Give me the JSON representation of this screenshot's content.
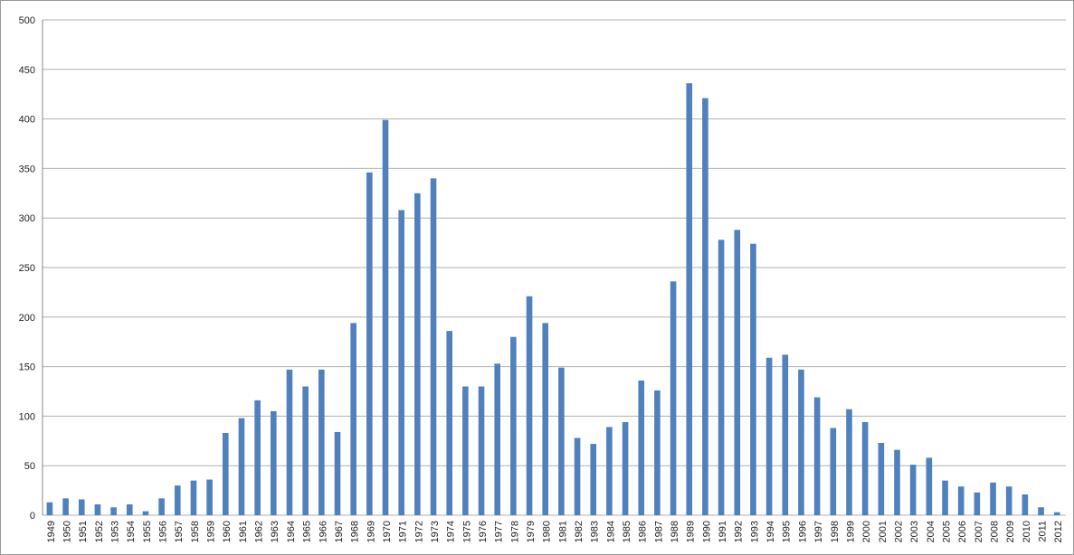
{
  "chart_data": {
    "type": "bar",
    "categories": [
      "1949",
      "1950",
      "1951",
      "1952",
      "1953",
      "1954",
      "1955",
      "1956",
      "1957",
      "1958",
      "1959",
      "1960",
      "1961",
      "1962",
      "1963",
      "1964",
      "1965",
      "1966",
      "1967",
      "1968",
      "1969",
      "1970",
      "1971",
      "1972",
      "1973",
      "1974",
      "1975",
      "1976",
      "1977",
      "1978",
      "1979",
      "1980",
      "1981",
      "1982",
      "1983",
      "1984",
      "1985",
      "1986",
      "1987",
      "1988",
      "1989",
      "1990",
      "1991",
      "1992",
      "1993",
      "1994",
      "1995",
      "1996",
      "1997",
      "1998",
      "1999",
      "2000",
      "2001",
      "2002",
      "2003",
      "2004",
      "2005",
      "2006",
      "2007",
      "2008",
      "2009",
      "2010",
      "2011",
      "2012"
    ],
    "values": [
      13,
      17,
      16,
      11,
      8,
      11,
      4,
      17,
      30,
      35,
      36,
      83,
      98,
      116,
      105,
      147,
      130,
      147,
      84,
      194,
      346,
      399,
      308,
      325,
      340,
      186,
      130,
      130,
      153,
      180,
      221,
      194,
      149,
      78,
      72,
      89,
      94,
      136,
      126,
      236,
      436,
      421,
      278,
      288,
      274,
      159,
      162,
      147,
      119,
      88,
      107,
      94,
      73,
      66,
      51,
      58,
      35,
      29,
      23,
      33,
      29,
      21,
      8,
      3
    ],
    "color": "#4f81bd",
    "ylim": [
      0,
      500
    ],
    "yticks": [
      0,
      50,
      100,
      150,
      200,
      250,
      300,
      350,
      400,
      450,
      500
    ],
    "grid": true
  }
}
